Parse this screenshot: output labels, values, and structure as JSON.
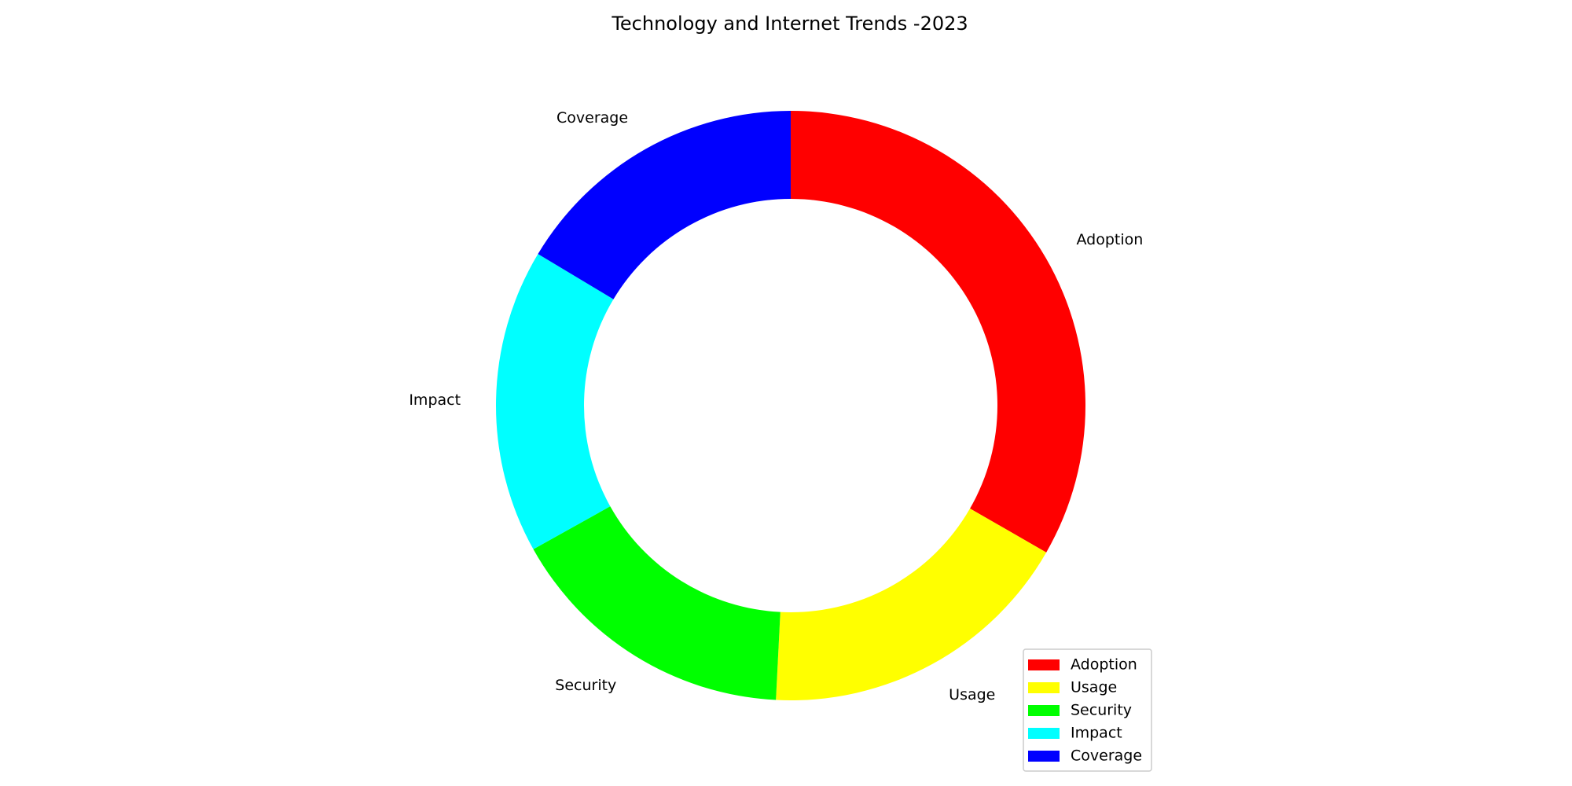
{
  "chart_data": {
    "type": "pie",
    "style": "donut",
    "title": "Technology and Internet Trends -2023",
    "start_angle": "top, clockwise",
    "legend_position": "lower-right",
    "categories": [
      "Adoption",
      "Usage",
      "Security",
      "Impact",
      "Coverage"
    ],
    "values": [
      33.3,
      17.5,
      16.1,
      16.7,
      16.4
    ],
    "colors": [
      "#ff0000",
      "#ffff00",
      "#00ff00",
      "#00ffff",
      "#0000ff"
    ]
  }
}
